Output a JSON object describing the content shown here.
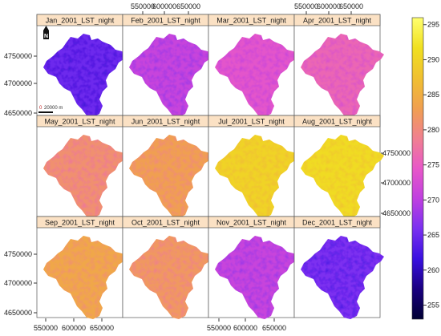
{
  "panels": [
    {
      "title": "Jan_2001_LST_night",
      "mean_lst": 265
    },
    {
      "title": "Feb_2001_LST_night",
      "mean_lst": 271
    },
    {
      "title": "Mar_2001_LST_night",
      "mean_lst": 274
    },
    {
      "title": "Apr_2001_LST_night",
      "mean_lst": 276
    },
    {
      "title": "May_2001_LST_night",
      "mean_lst": 281
    },
    {
      "title": "Jun_2001_LST_night",
      "mean_lst": 283
    },
    {
      "title": "Jul_2001_LST_night",
      "mean_lst": 290
    },
    {
      "title": "Aug_2001_LST_night",
      "mean_lst": 291
    },
    {
      "title": "Sep_2001_LST_night",
      "mean_lst": 284
    },
    {
      "title": "Oct_2001_LST_night",
      "mean_lst": 282
    },
    {
      "title": "Nov_2001_LST_night",
      "mean_lst": 271
    },
    {
      "title": "Dec_2001_LST_night",
      "mean_lst": 266
    }
  ],
  "x_ticks": [
    "550000",
    "600000",
    "650000"
  ],
  "y_ticks": [
    "4650000",
    "4700000",
    "4750000"
  ],
  "colorbar": {
    "ticks": [
      255,
      260,
      265,
      270,
      275,
      280,
      285,
      290,
      295
    ],
    "range": [
      253,
      296
    ],
    "stops": [
      "#000033",
      "#1a0080",
      "#3a10e0",
      "#7a30f0",
      "#c040e0",
      "#e858c8",
      "#f08090",
      "#f0a050",
      "#f0c030",
      "#f0e020",
      "#ffff70"
    ]
  },
  "scale_bar": {
    "label_zero": "0",
    "label_dist": "20000 m"
  },
  "north_arrow": {
    "label": "N"
  }
}
